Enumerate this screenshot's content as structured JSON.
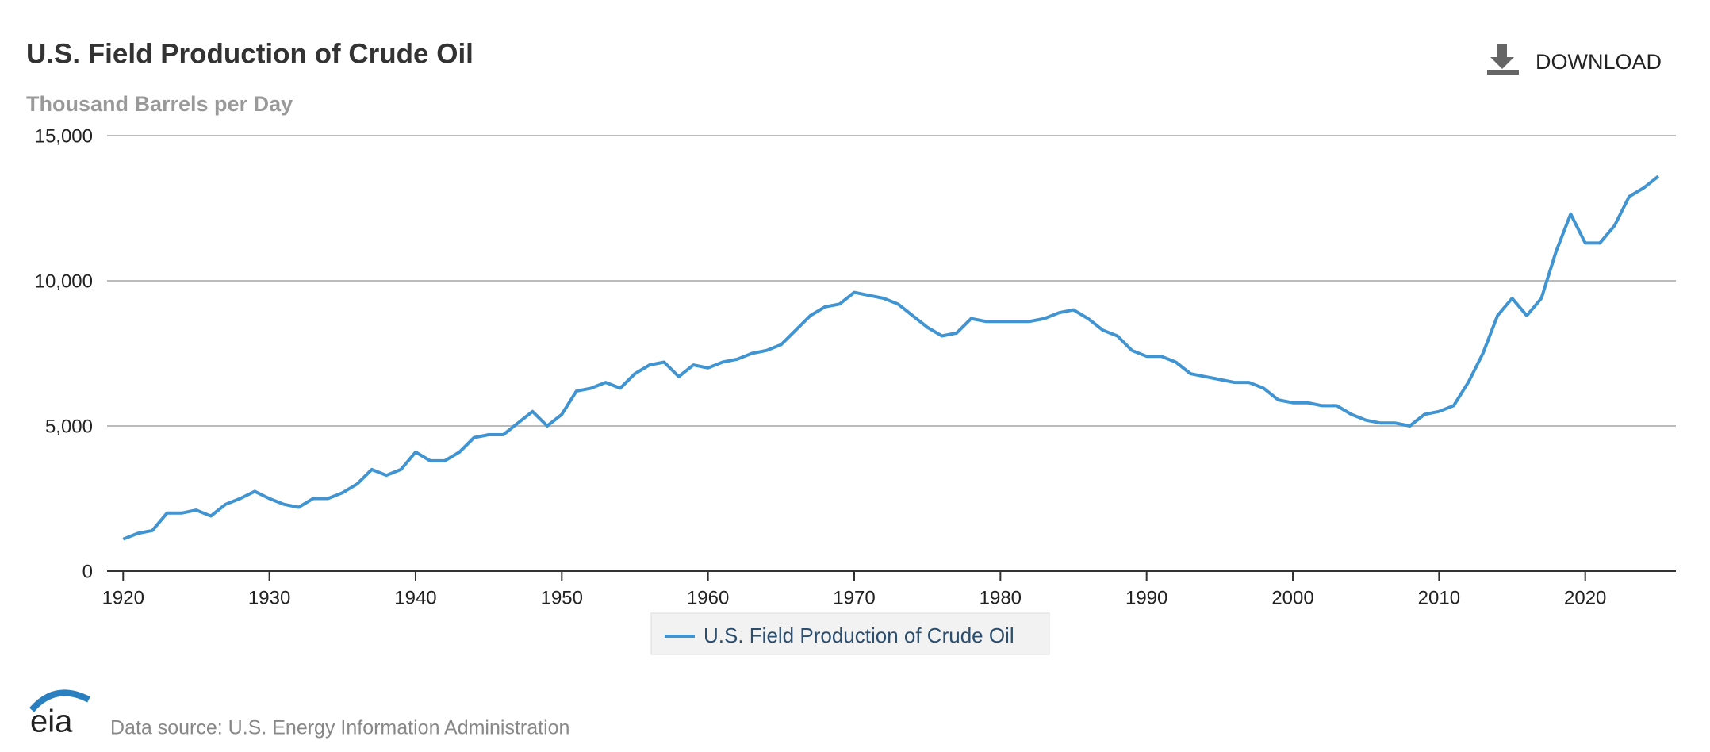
{
  "chart_data": {
    "type": "line",
    "title": "U.S. Field Production of Crude Oil",
    "subtitle": "Thousand Barrels per Day",
    "x": [
      1920,
      1921,
      1922,
      1923,
      1924,
      1925,
      1926,
      1927,
      1928,
      1929,
      1930,
      1931,
      1932,
      1933,
      1934,
      1935,
      1936,
      1937,
      1938,
      1939,
      1940,
      1941,
      1942,
      1943,
      1944,
      1945,
      1946,
      1947,
      1948,
      1949,
      1950,
      1951,
      1952,
      1953,
      1954,
      1955,
      1956,
      1957,
      1958,
      1959,
      1960,
      1961,
      1962,
      1963,
      1964,
      1965,
      1966,
      1967,
      1968,
      1969,
      1970,
      1971,
      1972,
      1973,
      1974,
      1975,
      1976,
      1977,
      1978,
      1979,
      1980,
      1981,
      1982,
      1983,
      1984,
      1985,
      1986,
      1987,
      1988,
      1989,
      1990,
      1991,
      1992,
      1993,
      1994,
      1995,
      1996,
      1997,
      1998,
      1999,
      2000,
      2001,
      2002,
      2003,
      2004,
      2005,
      2006,
      2007,
      2008,
      2009,
      2010,
      2011,
      2012,
      2013,
      2014,
      2015,
      2016,
      2017,
      2018,
      2019,
      2020,
      2021,
      2022,
      2023,
      2024,
      2025
    ],
    "series": [
      {
        "name": "U.S. Field Production of Crude Oil",
        "color": "#3f94d1",
        "values": [
          1100,
          1300,
          1400,
          2000,
          2000,
          2100,
          1900,
          2300,
          2500,
          2750,
          2500,
          2300,
          2200,
          2500,
          2500,
          2700,
          3000,
          3500,
          3300,
          3500,
          4100,
          3800,
          3800,
          4100,
          4600,
          4700,
          4700,
          5100,
          5500,
          5000,
          5400,
          6200,
          6300,
          6500,
          6300,
          6800,
          7100,
          7200,
          6700,
          7100,
          7000,
          7200,
          7300,
          7500,
          7600,
          7800,
          8300,
          8800,
          9100,
          9200,
          9600,
          9500,
          9400,
          9200,
          8800,
          8400,
          8100,
          8200,
          8700,
          8600,
          8600,
          8600,
          8600,
          8700,
          8900,
          9000,
          8700,
          8300,
          8100,
          7600,
          7400,
          7400,
          7200,
          6800,
          6700,
          6600,
          6500,
          6500,
          6300,
          5900,
          5800,
          5800,
          5700,
          5700,
          5400,
          5200,
          5100,
          5100,
          5000,
          5400,
          5500,
          5700,
          6500,
          7500,
          8800,
          9400,
          8800,
          9400,
          11000,
          12300,
          11300,
          11300,
          11900,
          12900,
          13200,
          13600
        ]
      }
    ],
    "xlim": [
      1918.9,
      2026.2
    ],
    "xticks": [
      1920,
      1930,
      1940,
      1950,
      1960,
      1970,
      1980,
      1990,
      2000,
      2010,
      2020
    ],
    "ylim": [
      0,
      15000
    ],
    "yticks": [
      0,
      {
        "value": 5000,
        "label": "5,000"
      },
      {
        "value": 10000,
        "label": "10,000"
      },
      {
        "value": 15000,
        "label": "15,000"
      }
    ],
    "grid": true
  },
  "download_label": "DOWNLOAD",
  "logo": "eia",
  "source": "Data source: U.S. Energy Information Administration"
}
